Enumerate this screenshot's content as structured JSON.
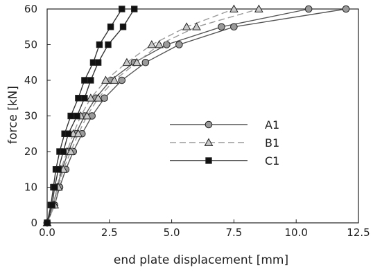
{
  "chart_data": {
    "type": "line",
    "title": "",
    "xlabel": "end plate displacement [mm]",
    "ylabel": "force [kN]",
    "xlim": [
      0,
      12.5
    ],
    "ylim": [
      0,
      60
    ],
    "xticks": [
      0.0,
      2.5,
      5.0,
      7.5,
      10.0,
      12.5
    ],
    "xtick_labels": [
      "0.0",
      "2.5",
      "5.0",
      "7.5",
      "10.0",
      "12.5"
    ],
    "yticks": [
      0,
      10,
      20,
      30,
      40,
      50,
      60
    ],
    "ytick_labels": [
      "0",
      "10",
      "20",
      "30",
      "40",
      "50",
      "60"
    ],
    "grid": false,
    "legend_position": "center-right",
    "series": [
      {
        "name": "A1",
        "color": "#555555",
        "marker": "circle",
        "marker_fill": "#9a9a9a",
        "dash": "solid",
        "curves": [
          [
            [
              0,
              0
            ],
            [
              0.25,
              5
            ],
            [
              0.4,
              10
            ],
            [
              0.6,
              15
            ],
            [
              0.85,
              20
            ],
            [
              1.15,
              25
            ],
            [
              1.5,
              30
            ],
            [
              1.95,
              35
            ],
            [
              2.55,
              40
            ],
            [
              3.5,
              45
            ],
            [
              4.8,
              50
            ],
            [
              7.0,
              55
            ],
            [
              10.5,
              60
            ]
          ],
          [
            [
              0,
              0
            ],
            [
              0.3,
              5
            ],
            [
              0.5,
              10
            ],
            [
              0.75,
              15
            ],
            [
              1.05,
              20
            ],
            [
              1.4,
              25
            ],
            [
              1.8,
              30
            ],
            [
              2.3,
              35
            ],
            [
              3.0,
              40
            ],
            [
              3.95,
              45
            ],
            [
              5.3,
              50
            ],
            [
              7.5,
              55
            ],
            [
              12.0,
              60
            ]
          ]
        ]
      },
      {
        "name": "B1",
        "color": "#9a9a9a",
        "marker": "triangle",
        "marker_fill": "#c8c8c8",
        "dash": "dashed",
        "curves": [
          [
            [
              0,
              0
            ],
            [
              0.25,
              5
            ],
            [
              0.4,
              10
            ],
            [
              0.55,
              15
            ],
            [
              0.8,
              20
            ],
            [
              1.05,
              25
            ],
            [
              1.35,
              30
            ],
            [
              1.75,
              35
            ],
            [
              2.35,
              40
            ],
            [
              3.2,
              45
            ],
            [
              4.2,
              50
            ],
            [
              5.6,
              55
            ],
            [
              7.5,
              60
            ]
          ],
          [
            [
              0,
              0
            ],
            [
              0.3,
              5
            ],
            [
              0.45,
              10
            ],
            [
              0.65,
              15
            ],
            [
              0.95,
              20
            ],
            [
              1.25,
              25
            ],
            [
              1.6,
              30
            ],
            [
              2.05,
              35
            ],
            [
              2.7,
              40
            ],
            [
              3.6,
              45
            ],
            [
              4.5,
              50
            ],
            [
              6.0,
              55
            ],
            [
              8.5,
              60
            ]
          ]
        ]
      },
      {
        "name": "C1",
        "color": "#333333",
        "marker": "square",
        "marker_fill": "#111111",
        "dash": "solid",
        "curves": [
          [
            [
              0,
              0
            ],
            [
              0.15,
              5
            ],
            [
              0.25,
              10
            ],
            [
              0.35,
              15
            ],
            [
              0.5,
              20
            ],
            [
              0.7,
              25
            ],
            [
              0.95,
              30
            ],
            [
              1.25,
              35
            ],
            [
              1.5,
              40
            ],
            [
              1.85,
              45
            ],
            [
              2.1,
              50
            ],
            [
              2.55,
              55
            ],
            [
              3.0,
              60
            ]
          ],
          [
            [
              0,
              0
            ],
            [
              0.2,
              5
            ],
            [
              0.3,
              10
            ],
            [
              0.45,
              15
            ],
            [
              0.65,
              20
            ],
            [
              0.85,
              25
            ],
            [
              1.2,
              30
            ],
            [
              1.5,
              35
            ],
            [
              1.75,
              40
            ],
            [
              2.05,
              45
            ],
            [
              2.45,
              50
            ],
            [
              3.05,
              55
            ],
            [
              3.5,
              60
            ]
          ]
        ]
      }
    ]
  }
}
